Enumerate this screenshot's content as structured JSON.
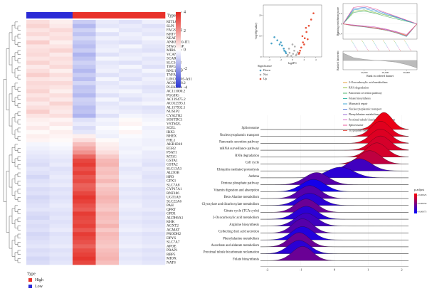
{
  "chart_data": [
    {
      "type": "heatmap",
      "annotation_label": "Type",
      "legend_title": "Type",
      "groups": [
        {
          "name": "High",
          "color": "#e8312a"
        },
        {
          "name": "Low",
          "color": "#2b2bd6"
        }
      ],
      "samples": [
        "Low",
        "Low",
        "High",
        "High",
        "High",
        "High"
      ],
      "colors": {
        "low": "#2a36d4",
        "mid": "#ffffff",
        "high": "#e3261e"
      },
      "zlim": [
        -4,
        4
      ],
      "zticks": [
        4,
        2,
        0,
        -2,
        -4
      ],
      "genes": [
        "KITLG",
        "SLPI",
        "FAGSTD2",
        "KRT7",
        "NEAT1",
        "ANKRD10-IT1",
        "STAG3L5P",
        "MIR647",
        "VCAN",
        "SCARA3",
        "SLC34A2",
        "TBPI2",
        "RNU1-14P",
        "TNFAIP6",
        "LINC01705-AS1",
        "AC005498.2",
        "PLEKHS1",
        "AC111000.2",
        "PGGHG",
        "AC139475.2",
        "AC012593.1",
        "AL157932.1",
        "NUS1P2",
        "CYSLTR2",
        "SOSTDC1",
        "VSTM2L",
        "SCEL",
        "IRX3",
        "RHEX",
        "FHL1",
        "AKR1B10",
        "EGR2",
        "PSAT1",
        "MT1G",
        "GSTA1",
        "GSTA2",
        "SLC13A3",
        "ALDOB",
        "HPD",
        "GPX3",
        "SLC7A8",
        "CYP17A1",
        "RNF186",
        "UGT1A9",
        "SLC22A6",
        "PAH",
        "QPRT",
        "GPD1",
        "ALDH6A1",
        "KHK",
        "AGXT2",
        "AGMAT",
        "PRODH2",
        "DPYS",
        "SLC7A7",
        "APOE",
        "PRAP1",
        "RBP5",
        "MIOX",
        "NAT8"
      ],
      "values": [
        [
          0.6,
          0.3,
          -1.0,
          -0.4,
          -0.6,
          -0.3
        ],
        [
          0.8,
          0.4,
          -1.4,
          -0.5,
          -0.4,
          -0.6
        ],
        [
          0.5,
          0.7,
          -0.9,
          -0.2,
          -0.5,
          -0.4
        ],
        [
          0.7,
          0.5,
          -1.2,
          -0.6,
          -0.3,
          -0.5
        ],
        [
          0.4,
          0.6,
          -0.8,
          -0.3,
          -0.4,
          -0.2
        ],
        [
          0.9,
          0.3,
          -1.1,
          -0.5,
          -0.6,
          -0.4
        ],
        [
          0.5,
          0.5,
          -1.3,
          -0.4,
          -0.2,
          -0.5
        ],
        [
          0.6,
          0.8,
          -1.0,
          -0.3,
          -0.5,
          -0.6
        ],
        [
          0.7,
          0.4,
          -1.5,
          -0.6,
          -0.4,
          -0.3
        ],
        [
          0.5,
          0.6,
          -1.2,
          -0.2,
          -0.3,
          -0.5
        ],
        [
          0.8,
          0.5,
          -0.9,
          -0.5,
          -0.6,
          -0.4
        ],
        [
          0.4,
          0.7,
          -1.1,
          -0.4,
          -0.2,
          -0.6
        ],
        [
          0.6,
          0.3,
          -1.4,
          -0.3,
          -0.5,
          -0.2
        ],
        [
          0.9,
          0.6,
          -1.0,
          -0.6,
          -0.4,
          -0.5
        ],
        [
          0.5,
          0.4,
          -1.3,
          -0.2,
          -0.6,
          -0.3
        ],
        [
          0.7,
          0.7,
          -0.8,
          -0.5,
          -0.3,
          -0.4
        ],
        [
          0.6,
          0.5,
          -1.2,
          -0.4,
          -0.5,
          -0.6
        ],
        [
          0.8,
          0.3,
          -1.1,
          -0.3,
          -0.2,
          -0.5
        ],
        [
          0.5,
          0.6,
          -1.4,
          -0.6,
          -0.4,
          -0.3
        ],
        [
          0.7,
          0.4,
          -0.9,
          -0.2,
          -0.6,
          -0.4
        ],
        [
          0.4,
          0.8,
          -1.0,
          -0.5,
          -0.3,
          -0.2
        ],
        [
          0.6,
          0.5,
          -1.3,
          -0.4,
          -0.5,
          -0.6
        ],
        [
          0.9,
          0.4,
          -1.2,
          -0.3,
          -0.4,
          -0.5
        ],
        [
          0.5,
          0.6,
          -1.5,
          -0.6,
          -0.2,
          -0.3
        ],
        [
          0.3,
          0.2,
          -0.6,
          -0.2,
          0.1,
          -0.2
        ],
        [
          0.2,
          0.4,
          -0.4,
          -0.3,
          0.2,
          -0.1
        ],
        [
          0.4,
          0.1,
          -0.7,
          -0.1,
          0.0,
          -0.3
        ],
        [
          0.1,
          0.3,
          -0.5,
          -0.2,
          0.2,
          -0.2
        ],
        [
          0.3,
          0.2,
          0.3,
          -0.3,
          -0.1,
          -0.2
        ],
        [
          0.2,
          0.1,
          0.6,
          0.1,
          -0.2,
          -0.3
        ],
        [
          -0.2,
          -0.1,
          1.2,
          0.3,
          -0.2,
          -0.3
        ],
        [
          -0.3,
          -0.2,
          1.6,
          0.4,
          -0.3,
          -0.2
        ],
        [
          -0.4,
          -0.3,
          2.0,
          0.6,
          -0.2,
          -0.4
        ],
        [
          -0.5,
          -0.4,
          2.8,
          1.0,
          -0.3,
          -0.4
        ],
        [
          -0.6,
          -0.5,
          3.4,
          1.3,
          -0.4,
          -0.5
        ],
        [
          -0.7,
          -0.4,
          3.6,
          1.4,
          -0.3,
          -0.6
        ],
        [
          -0.5,
          -0.6,
          3.2,
          1.1,
          -0.5,
          -0.4
        ],
        [
          -0.6,
          -0.5,
          3.5,
          1.2,
          -0.4,
          -0.5
        ],
        [
          -0.8,
          -0.4,
          3.1,
          1.0,
          -0.3,
          -0.6
        ],
        [
          -0.6,
          -0.5,
          3.3,
          1.3,
          -0.4,
          -0.5
        ],
        [
          -0.5,
          -0.4,
          2.9,
          0.9,
          -0.3,
          -0.4
        ],
        [
          -0.7,
          -0.6,
          3.0,
          1.1,
          -0.5,
          -0.6
        ],
        [
          -0.6,
          -0.5,
          3.4,
          1.2,
          -0.4,
          -0.5
        ],
        [
          -0.8,
          -0.6,
          3.7,
          1.4,
          -0.5,
          -0.6
        ],
        [
          -0.7,
          -0.5,
          3.5,
          1.3,
          -0.4,
          -0.5
        ],
        [
          -0.6,
          -0.4,
          3.2,
          1.1,
          -0.3,
          -0.5
        ],
        [
          -0.5,
          -0.5,
          3.0,
          1.0,
          -0.4,
          -0.4
        ],
        [
          -0.7,
          -0.6,
          3.6,
          1.3,
          -0.5,
          -0.6
        ],
        [
          -0.8,
          -0.5,
          3.4,
          1.2,
          -0.4,
          -0.5
        ],
        [
          -0.6,
          -0.6,
          3.3,
          1.1,
          -0.5,
          -0.6
        ],
        [
          -0.7,
          -0.5,
          3.5,
          1.4,
          -0.4,
          -0.5
        ],
        [
          -0.6,
          -0.4,
          3.1,
          1.0,
          -0.3,
          -0.4
        ],
        [
          -0.8,
          -0.6,
          3.6,
          1.3,
          -0.5,
          -0.6
        ],
        [
          -0.7,
          -0.5,
          3.4,
          1.2,
          -0.4,
          -0.5
        ],
        [
          -0.6,
          -0.5,
          3.2,
          1.1,
          -0.4,
          -0.5
        ],
        [
          -0.5,
          -0.4,
          2.9,
          1.0,
          -0.3,
          -0.4
        ],
        [
          -0.7,
          -0.6,
          3.3,
          1.2,
          -0.5,
          -0.6
        ],
        [
          -0.6,
          -0.5,
          3.5,
          1.3,
          -0.4,
          -0.5
        ],
        [
          -0.8,
          -0.6,
          3.7,
          1.4,
          -0.5,
          -0.6
        ],
        [
          -0.7,
          -0.5,
          3.4,
          1.2,
          -0.4,
          -0.5
        ]
      ]
    },
    {
      "type": "scatter",
      "x_label": "log2FC",
      "y_label": "-log10(pvalue)",
      "legend_title": "Significance",
      "xlim": [
        -5,
        5
      ],
      "ylim": [
        0,
        25
      ],
      "xticks": [
        -4,
        -2,
        0,
        2,
        4
      ],
      "yticks": [
        0,
        10,
        20
      ],
      "series": [
        {
          "name": "Down",
          "color": "#4aa3c8",
          "x": [
            -1.2,
            -1.5,
            -1.8,
            -2.2,
            -2.6,
            -3.1,
            -1.4,
            -2.0,
            -1.1,
            -3.6
          ],
          "values": [
            2.5,
            4.0,
            5.5,
            6.0,
            8.0,
            9.5,
            3.0,
            7.0,
            1.8,
            6.5
          ]
        },
        {
          "name": "Not",
          "color": "#b0b0b0",
          "x": [
            -0.8,
            -0.5,
            -0.2,
            0.1,
            0.3,
            0.6,
            0.9,
            -0.6,
            0.4,
            0.0,
            -0.9,
            0.7
          ],
          "values": [
            1.0,
            2.0,
            0.5,
            1.5,
            3.0,
            0.8,
            2.2,
            4.0,
            5.0,
            6.0,
            0.3,
            1.2
          ]
        },
        {
          "name": "Up",
          "color": "#e8533a",
          "x": [
            1.2,
            1.5,
            1.8,
            2.1,
            2.4,
            2.8,
            3.2,
            1.3,
            1.7,
            2.0,
            2.6,
            3.6,
            1.1,
            2.3
          ],
          "values": [
            2.0,
            4.5,
            7.0,
            9.0,
            12.0,
            15.0,
            18.0,
            3.0,
            10.0,
            6.0,
            8.5,
            21.0,
            1.5,
            14.0
          ]
        }
      ]
    },
    {
      "type": "line",
      "x_label": "Rank in ordered dataset",
      "y_label": "Running enrichment score",
      "y2_label": "Ranked list metric",
      "x": [
        0,
        5000,
        10000,
        15000,
        20000,
        25000,
        30000,
        35000
      ],
      "xlim": [
        0,
        35000
      ],
      "xticks": [
        {
          "value": 10000,
          "label": "10,000"
        },
        {
          "value": 20000,
          "label": "20,000"
        },
        {
          "value": 30000,
          "label": "30,000"
        }
      ],
      "ylim": [
        -0.6,
        0.8
      ],
      "yticks": [
        -0.4,
        0,
        0.4
      ],
      "series": [
        {
          "name": "2-Oxocarboxylic acid metabolism",
          "color": "#e6a23c",
          "values": [
            0,
            -0.05,
            -0.1,
            -0.15,
            -0.2,
            -0.3,
            -0.45,
            0
          ]
        },
        {
          "name": "RNA degradation",
          "color": "#8bbf3f",
          "values": [
            0,
            0.5,
            0.55,
            0.45,
            0.35,
            0.25,
            0.12,
            0
          ]
        },
        {
          "name": "Pancreatic secretion pathway",
          "color": "#4fb36c",
          "values": [
            0,
            0.45,
            0.5,
            0.42,
            0.3,
            0.2,
            0.1,
            0
          ]
        },
        {
          "name": "Folate biosynthesis",
          "color": "#3fb8a8",
          "values": [
            0,
            -0.08,
            -0.12,
            -0.18,
            -0.25,
            -0.35,
            -0.5,
            0
          ]
        },
        {
          "name": "Mismatch repair",
          "color": "#3fa7d6",
          "values": [
            0,
            0.55,
            0.6,
            0.5,
            0.38,
            0.26,
            0.12,
            0
          ]
        },
        {
          "name": "Nucleocytoplasmic transport",
          "color": "#5b7fd6",
          "values": [
            0,
            0.6,
            0.65,
            0.55,
            0.42,
            0.28,
            0.14,
            0
          ]
        },
        {
          "name": "Phenylalanine metabolism",
          "color": "#9b6bd6",
          "values": [
            0,
            -0.06,
            -0.1,
            -0.16,
            -0.22,
            -0.32,
            -0.48,
            0
          ]
        },
        {
          "name": "Proximal tubule bicarbonate reclamation",
          "color": "#d466c9",
          "values": [
            0,
            -0.04,
            -0.08,
            -0.12,
            -0.2,
            -0.3,
            -0.42,
            0
          ]
        },
        {
          "name": "Spliceosome",
          "color": "#e85a9b",
          "values": [
            0,
            0.65,
            0.7,
            0.6,
            0.45,
            0.3,
            0.15,
            0
          ]
        },
        {
          "name": "Tryptophan metabolism",
          "color": "#e8625a",
          "values": [
            0,
            -0.07,
            -0.11,
            -0.17,
            -0.24,
            -0.34,
            -0.46,
            0
          ]
        }
      ],
      "ranked_metric": {
        "values": [
          4,
          1.5,
          0.6,
          0.1,
          -0.3,
          -0.9,
          -2.2,
          -4
        ],
        "ylim": [
          -5,
          5
        ],
        "color": "#888888"
      }
    },
    {
      "type": "ridge",
      "legend_title": "p.adjust",
      "xlim": [
        -2.2,
        2.2
      ],
      "xticks": [
        -2,
        -1,
        0,
        1,
        2
      ],
      "clim": [
        0.0002,
        0.0008
      ],
      "colors": {
        "low": "#ff0000",
        "high": "#0000ff"
      },
      "cticks": [
        0.00025,
        {
          "value": 0.0005,
          "label": "0.00050"
        },
        0.00075
      ],
      "ridges": [
        {
          "name": "Spliceosome",
          "peak": 1.47,
          "spread": 0.25,
          "p_adjust": 0.00025
        },
        {
          "name": "Nucleocytoplasmic transport",
          "peak": 1.37,
          "spread": 0.28,
          "p_adjust": 0.00027
        },
        {
          "name": "Pancreatic secretion pathway",
          "peak": 1.37,
          "spread": 0.3,
          "p_adjust": 0.00028
        },
        {
          "name": "mRNA surveillance pathway",
          "peak": 1.37,
          "spread": 0.3,
          "p_adjust": 0.0003
        },
        {
          "name": "RNA degradation",
          "peak": 1.26,
          "spread": 0.3,
          "p_adjust": 0.0003
        },
        {
          "name": "Cell cycle",
          "peak": 1.05,
          "spread": 0.32,
          "p_adjust": 0.00035
        },
        {
          "name": "Ubiquitin mediated proteolysis",
          "peak": 0.74,
          "spread": 0.35,
          "p_adjust": 0.00065
        },
        {
          "name": "Asthma",
          "peak": 0.17,
          "spread": 0.4,
          "p_adjust": 0.0007
        },
        {
          "name": "Pentose phosphate pathway",
          "peak": -0.53,
          "spread": 0.35,
          "p_adjust": 0.0006
        },
        {
          "name": "Vitamin digestion and absorption",
          "peak": -0.63,
          "spread": 0.35,
          "p_adjust": 0.00075
        },
        {
          "name": "Beta-Alanine metabolism",
          "peak": -0.74,
          "spread": 0.33,
          "p_adjust": 0.0006
        },
        {
          "name": "Glyoxylate and dicarboxylate metabolism",
          "peak": -0.74,
          "spread": 0.35,
          "p_adjust": 0.0007
        },
        {
          "name": "Citrate cycle (TCA cycle)",
          "peak": -0.84,
          "spread": 0.32,
          "p_adjust": 0.00055
        },
        {
          "name": "2-Oxocarboxylic acid metabolism",
          "peak": -0.84,
          "spread": 0.33,
          "p_adjust": 0.0007
        },
        {
          "name": "Arginine biosynthesis",
          "peak": -0.84,
          "spread": 0.33,
          "p_adjust": 0.00065
        },
        {
          "name": "Collecting duct acid secretion",
          "peak": -0.95,
          "spread": 0.3,
          "p_adjust": 0.0006
        },
        {
          "name": "Phenylalanine metabolism",
          "peak": -0.95,
          "spread": 0.32,
          "p_adjust": 0.00072
        },
        {
          "name": "Ascorbate and aldarate metabolism",
          "peak": -1.05,
          "spread": 0.3,
          "p_adjust": 0.00055
        },
        {
          "name": "Proximal tubule bicarbonate reclamation",
          "peak": -1.05,
          "spread": 0.32,
          "p_adjust": 0.0007
        },
        {
          "name": "Folate biosynthesis",
          "peak": -0.95,
          "spread": 0.3,
          "p_adjust": 0.00055
        }
      ]
    }
  ]
}
